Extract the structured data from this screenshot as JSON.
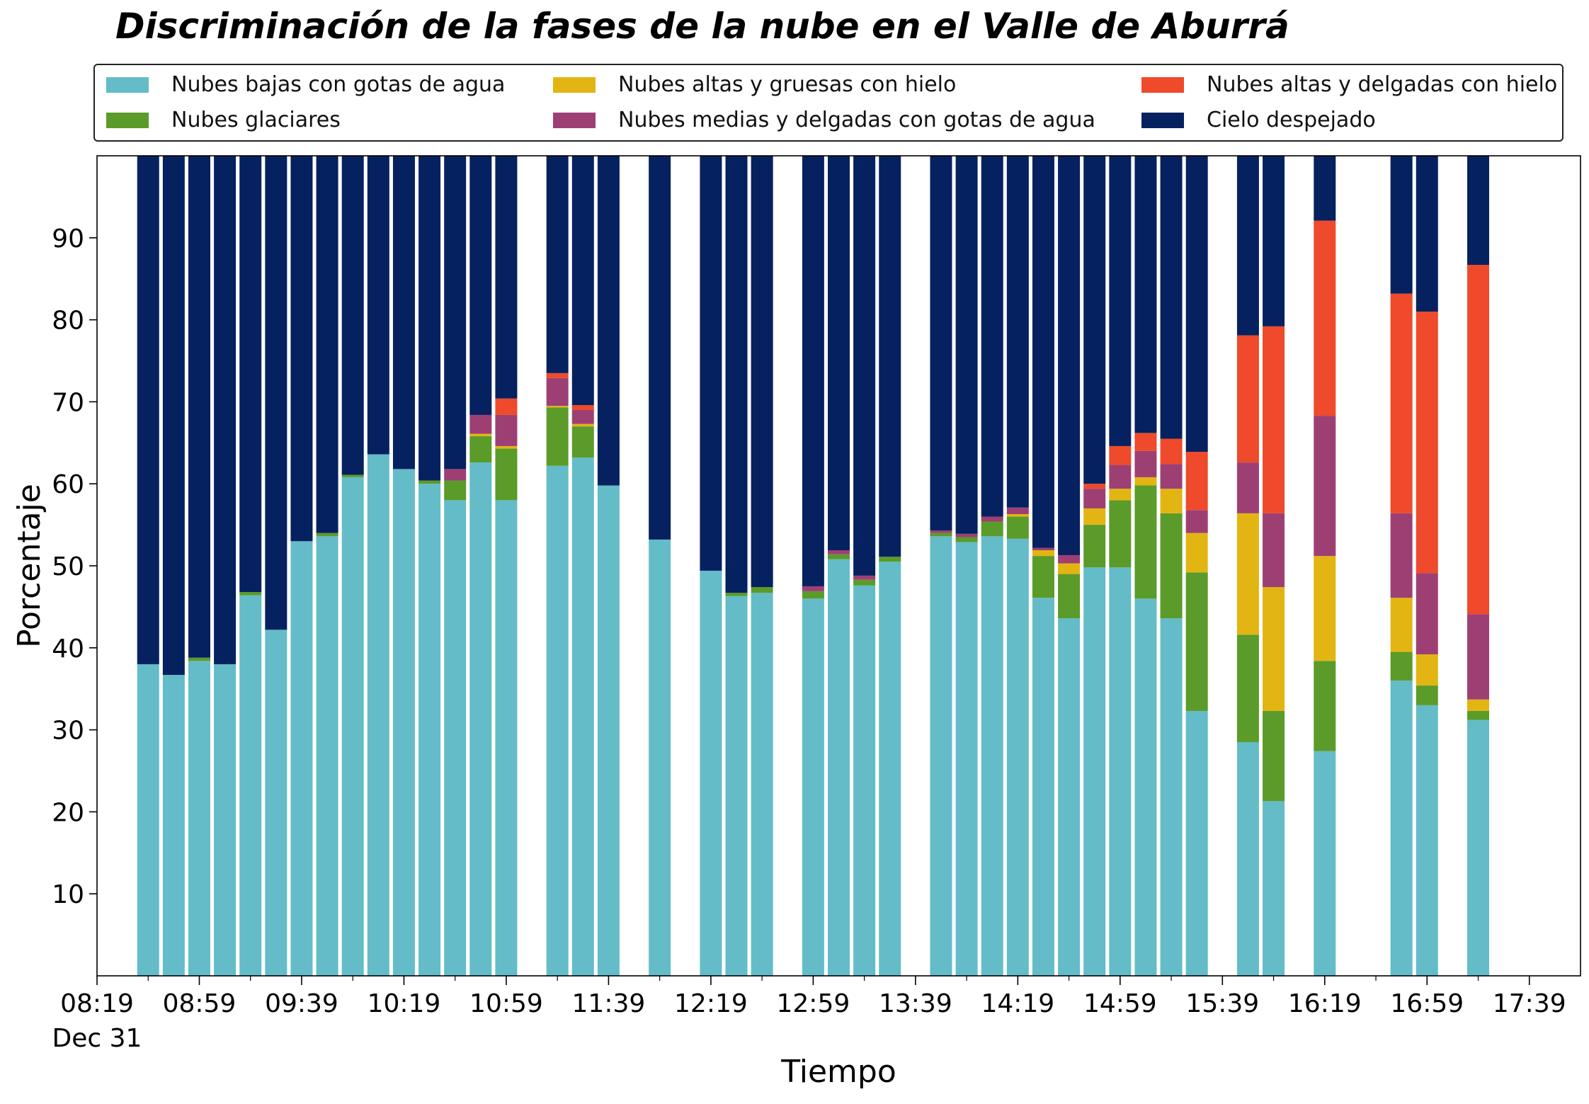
{
  "title": "Discriminación de la fases de la nube en el Valle de Aburrá",
  "legend": {
    "items": [
      {
        "label": "Nubes bajas con gotas de agua",
        "color": "#64BCC8"
      },
      {
        "label": "Nubes altas y gruesas con hielo",
        "color": "#E2B513"
      },
      {
        "label": "Nubes altas y delgadas con hielo",
        "color": "#EE4A2B"
      },
      {
        "label": "Nubes glaciares",
        "color": "#5B9B29"
      },
      {
        "label": "Nubes medias y delgadas con gotas de agua",
        "color": "#9E3F74"
      },
      {
        "label": "Cielo despejado",
        "color": "#06215F"
      }
    ]
  },
  "chart_data": {
    "type": "bar",
    "stacked": true,
    "title": "Discriminación de la fases de la nube en el Valle de Aburrá",
    "xlabel": "Tiempo",
    "ylabel": "Porcentaje",
    "ylim": [
      0,
      100
    ],
    "yticks": [
      10,
      20,
      30,
      40,
      50,
      60,
      70,
      80,
      90
    ],
    "xlim": [
      "08:19",
      "17:59"
    ],
    "x_tick_labels": [
      "08:19",
      "08:59",
      "09:39",
      "10:19",
      "10:59",
      "11:39",
      "12:19",
      "12:59",
      "13:39",
      "14:19",
      "14:59",
      "15:39",
      "16:19",
      "16:59",
      "17:39"
    ],
    "x_date_label": "Dec 31",
    "x": [
      "08:39",
      "08:49",
      "08:59",
      "09:09",
      "09:19",
      "09:29",
      "09:39",
      "09:49",
      "09:59",
      "10:09",
      "10:19",
      "10:29",
      "10:39",
      "10:49",
      "10:59",
      "11:19",
      "11:29",
      "11:39",
      "11:59",
      "12:19",
      "12:29",
      "12:39",
      "12:59",
      "13:09",
      "13:19",
      "13:29",
      "13:49",
      "13:59",
      "14:09",
      "14:19",
      "14:29",
      "14:39",
      "14:49",
      "14:59",
      "15:09",
      "15:19",
      "15:29",
      "15:49",
      "15:59",
      "16:19",
      "16:49",
      "16:59",
      "17:19"
    ],
    "series": [
      {
        "name": "Nubes bajas con gotas de agua",
        "color": "#64BCC8",
        "values": [
          38,
          36.7,
          38.4,
          38,
          46.4,
          42.2,
          53,
          53.6,
          60.8,
          63.6,
          61.8,
          60,
          58,
          62.6,
          58,
          62.2,
          63.2,
          59.8,
          53.2,
          49.4,
          46.3,
          46.7,
          46,
          50.8,
          47.6,
          50.5,
          53.6,
          52.9,
          53.6,
          53.3,
          46.1,
          43.6,
          49.8,
          49.8,
          46,
          43.6,
          32.3,
          28.5,
          21.3,
          27.4,
          36,
          33,
          31.2
        ]
      },
      {
        "name": "Nubes glaciares",
        "color": "#5B9B29",
        "values": [
          0,
          0,
          0.4,
          0,
          0.4,
          0,
          0,
          0.4,
          0.3,
          0,
          0,
          0.4,
          2.4,
          3.2,
          6.3,
          7.1,
          3.8,
          0,
          0,
          0,
          0.4,
          0.7,
          0.9,
          0.6,
          0.7,
          0.6,
          0.4,
          0.6,
          1.8,
          2.7,
          5.1,
          5.4,
          5.2,
          8.2,
          13.8,
          12.8,
          16.9,
          13.1,
          11,
          11,
          3.5,
          2.4,
          1.1
        ]
      },
      {
        "name": "Nubes altas y gruesas con hielo",
        "color": "#E2B513",
        "values": [
          0,
          0,
          0,
          0,
          0,
          0,
          0,
          0,
          0,
          0,
          0,
          0,
          0,
          0.3,
          0.3,
          0.2,
          0.3,
          0,
          0,
          0,
          0,
          0,
          0,
          0,
          0,
          0,
          0,
          0,
          0,
          0.3,
          0.7,
          1.3,
          2,
          1.4,
          1,
          3,
          4.8,
          14.8,
          15.1,
          12.8,
          6.6,
          3.8,
          1.4
        ]
      },
      {
        "name": "Nubes medias y delgadas con gotas de agua",
        "color": "#9E3F74",
        "values": [
          0,
          0,
          0,
          0,
          0,
          0,
          0,
          0,
          0,
          0,
          0,
          0,
          1.4,
          2.3,
          3.8,
          3.4,
          1.7,
          0,
          0,
          0,
          0,
          0,
          0.6,
          0.5,
          0.5,
          0,
          0.3,
          0.4,
          0.6,
          0.8,
          0.3,
          1,
          2.4,
          2.9,
          3.2,
          3,
          2.8,
          6.2,
          9,
          17.1,
          10.3,
          9.9,
          10.4
        ]
      },
      {
        "name": "Nubes altas y delgadas con hielo",
        "color": "#EE4A2B",
        "values": [
          0,
          0,
          0,
          0,
          0,
          0,
          0,
          0,
          0,
          0,
          0,
          0,
          0,
          0,
          2,
          0.6,
          0.6,
          0,
          0,
          0,
          0,
          0,
          0,
          0,
          0,
          0,
          0,
          0,
          0,
          0,
          0,
          0,
          0.6,
          2.3,
          2.2,
          3.1,
          7.1,
          15.5,
          22.8,
          23.8,
          26.8,
          31.9,
          42.6
        ]
      },
      {
        "name": "Cielo despejado",
        "color": "#06215F",
        "values": [
          62,
          63.3,
          61.2,
          62,
          53.2,
          57.8,
          47,
          46,
          38.9,
          36.4,
          38.2,
          39.6,
          38.2,
          31.6,
          29.6,
          26.5,
          30.4,
          40.2,
          46.8,
          50.6,
          53.3,
          52.6,
          52.5,
          48.1,
          51.2,
          48.9,
          45.7,
          46.1,
          44,
          42.9,
          47.8,
          48.7,
          40,
          35.4,
          33.8,
          34.5,
          36.1,
          21.9,
          20.8,
          7.9,
          16.8,
          19,
          13.3
        ]
      }
    ]
  }
}
